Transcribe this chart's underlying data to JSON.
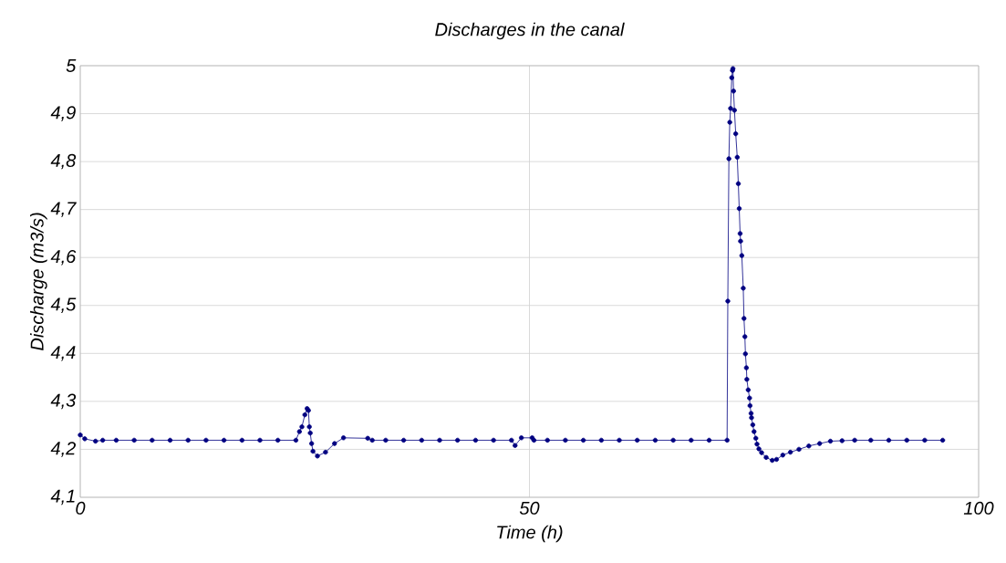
{
  "chart_data": {
    "type": "line",
    "title": "Discharges in the canal",
    "xlabel": "Time (h)",
    "ylabel": "Discharge (m3/s)",
    "xlim": [
      0,
      100
    ],
    "ylim": [
      4.1,
      5
    ],
    "xticks": [
      0,
      50,
      100
    ],
    "yticks": [
      {
        "value": 4.1,
        "label": "4,1"
      },
      {
        "value": 4.2,
        "label": "4,2"
      },
      {
        "value": 4.3,
        "label": "4,3"
      },
      {
        "value": 4.4,
        "label": "4,4"
      },
      {
        "value": 4.5,
        "label": "4,5"
      },
      {
        "value": 4.6,
        "label": "4,6"
      },
      {
        "value": 4.7,
        "label": "4,7"
      },
      {
        "value": 4.8,
        "label": "4,8"
      },
      {
        "value": 4.9,
        "label": "4,9"
      },
      {
        "value": 5,
        "label": "5"
      }
    ],
    "grid": true,
    "marker": "circle",
    "line_style": "solid",
    "series": [
      {
        "color": "#000080",
        "x": [
          0,
          0.5,
          1.7,
          2.5,
          4,
          6,
          8,
          10,
          12,
          14,
          16,
          18,
          20,
          22,
          24,
          24.4,
          24.67,
          25.0,
          25.25,
          25.4,
          25.5,
          25.6,
          25.75,
          25.9,
          26.4,
          27.3,
          28.3,
          29.3,
          32.0,
          32.5,
          34,
          36,
          38,
          40,
          42,
          44,
          46,
          48,
          48.4,
          49.1,
          50.3,
          50.5,
          52,
          54,
          56,
          58,
          60,
          62,
          64,
          66,
          68,
          70,
          72.0,
          72.08,
          72.2,
          72.3,
          72.39,
          72.52,
          72.6,
          72.65,
          72.72,
          72.82,
          72.96,
          73.13,
          73.25,
          73.35,
          73.45,
          73.5,
          73.64,
          73.8,
          73.88,
          73.98,
          74.04,
          74.15,
          74.2,
          74.35,
          74.5,
          74.55,
          74.67,
          74.72,
          74.86,
          75.0,
          75.2,
          75.33,
          75.54,
          75.84,
          76.35,
          77.03,
          77.5,
          78.2,
          79.05,
          80.0,
          81.1,
          82.3,
          83.5,
          84.8,
          86.2,
          88,
          90,
          92,
          94,
          96
        ],
        "values": [
          4.23,
          4.222,
          4.217,
          4.219,
          4.219,
          4.219,
          4.219,
          4.219,
          4.219,
          4.219,
          4.219,
          4.219,
          4.219,
          4.219,
          4.219,
          4.237,
          4.247,
          4.272,
          4.285,
          4.281,
          4.247,
          4.234,
          4.212,
          4.196,
          4.186,
          4.194,
          4.212,
          4.224,
          4.223,
          4.219,
          4.219,
          4.219,
          4.219,
          4.219,
          4.219,
          4.219,
          4.219,
          4.219,
          4.208,
          4.224,
          4.224,
          4.219,
          4.219,
          4.219,
          4.219,
          4.219,
          4.219,
          4.219,
          4.219,
          4.219,
          4.219,
          4.219,
          4.219,
          4.509,
          4.806,
          4.882,
          4.911,
          4.975,
          4.99,
          4.994,
          4.947,
          4.907,
          4.858,
          4.809,
          4.754,
          4.702,
          4.65,
          4.634,
          4.604,
          4.536,
          4.473,
          4.435,
          4.399,
          4.37,
          4.346,
          4.324,
          4.307,
          4.291,
          4.275,
          4.266,
          4.251,
          4.237,
          4.223,
          4.211,
          4.201,
          4.193,
          4.183,
          4.177,
          4.179,
          4.188,
          4.194,
          4.2,
          4.207,
          4.212,
          4.217,
          4.218,
          4.219,
          4.219,
          4.219,
          4.219,
          4.219,
          4.219
        ]
      }
    ]
  }
}
